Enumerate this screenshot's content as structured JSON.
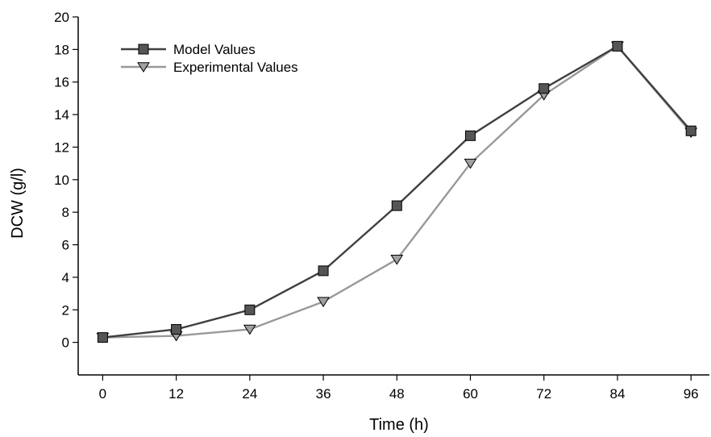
{
  "chart_data": {
    "type": "line",
    "title": "",
    "xlabel": "Time (h)",
    "ylabel": "DCW (g/l)",
    "x": [
      0,
      12,
      24,
      36,
      48,
      60,
      72,
      84,
      96
    ],
    "xlim": [
      -4,
      99
    ],
    "ylim": [
      -2,
      20
    ],
    "yticks": [
      0,
      2,
      4,
      6,
      8,
      10,
      12,
      14,
      16,
      18,
      20
    ],
    "xticks": [
      0,
      12,
      24,
      36,
      48,
      60,
      72,
      84,
      96
    ],
    "grid": false,
    "legend_position": "top-left",
    "series": [
      {
        "name": "Model Values",
        "values": [
          0.3,
          0.8,
          2.0,
          4.4,
          8.4,
          12.7,
          15.6,
          18.2,
          13.0
        ],
        "marker": "square",
        "line_color": "#404040",
        "marker_color": "#555555"
      },
      {
        "name": "Experimental Values",
        "values": [
          0.3,
          0.4,
          0.8,
          2.5,
          5.1,
          11.0,
          15.2,
          18.2,
          12.9
        ],
        "marker": "triangle-down",
        "line_color": "#999999",
        "marker_color": "#a0a0a0"
      }
    ]
  }
}
